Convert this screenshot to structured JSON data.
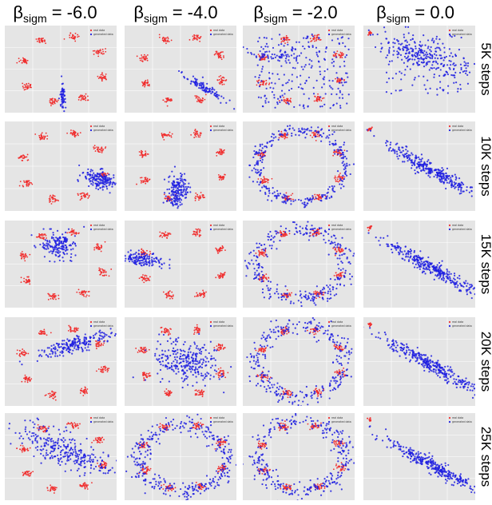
{
  "figure": {
    "beta_symbol": "β",
    "beta_subscript": "sigm"
  },
  "chart_data": {
    "type": "scatter",
    "title": "",
    "columns": [
      {
        "label": "= -6.0",
        "beta_sigm": -6.0
      },
      {
        "label": "= -4.0",
        "beta_sigm": -4.0
      },
      {
        "label": "= -2.0",
        "beta_sigm": -2.0
      },
      {
        "label": "= 0.0",
        "beta_sigm": 0.0
      }
    ],
    "rows": [
      "5K steps",
      "10K steps",
      "15K steps",
      "20K steps",
      "25K steps"
    ],
    "legend": [
      "real data",
      "generated data"
    ],
    "legend_placement": "top-right",
    "series": [
      {
        "name": "real data",
        "description": "8 Gaussian modes on a ring",
        "color": "#f03030"
      },
      {
        "name": "generated data",
        "color": "#1f1fe0"
      }
    ],
    "real_modes_count": 8,
    "grid": true,
    "xlim": [
      -1.0,
      1.0
    ],
    "ylim": [
      -1.0,
      1.0
    ]
  },
  "colors": {
    "background": "#e5e5e5",
    "grid": "#ffffff",
    "real": "#f03030",
    "generated": "#1f1fe0"
  }
}
